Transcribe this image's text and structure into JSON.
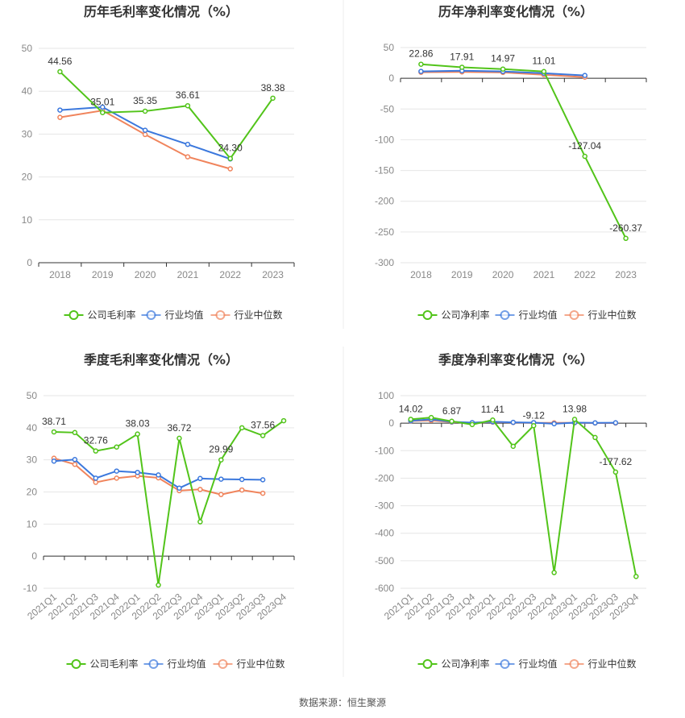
{
  "source_label": "数据来源：恒生聚源",
  "colors": {
    "company": "#52c41a",
    "industry_avg": "#3b78dd",
    "industry_median": "#f0845c",
    "grid": "#e6e6e6",
    "axis": "#333333",
    "divider": "#eeeeee"
  },
  "chart_data": [
    {
      "id": "annual-gross",
      "type": "line",
      "title": "历年毛利率变化情况（%）",
      "categories": [
        "2018",
        "2019",
        "2020",
        "2021",
        "2022",
        "2023"
      ],
      "ylim": [
        0,
        50
      ],
      "yticks": [
        0,
        10,
        20,
        30,
        40,
        50
      ],
      "series": [
        {
          "name": "公司毛利率",
          "key": "company",
          "values": [
            44.56,
            35.01,
            35.35,
            36.61,
            24.3,
            38.38
          ],
          "labels": true
        },
        {
          "name": "行业均值",
          "key": "industry_avg",
          "values": [
            35.6,
            36.3,
            30.9,
            27.6,
            24.2,
            null
          ]
        },
        {
          "name": "行业中位数",
          "key": "industry_median",
          "values": [
            33.9,
            35.5,
            29.9,
            24.7,
            21.9,
            null
          ]
        }
      ],
      "data_labels": [
        "44.56",
        "35.01",
        "35.35",
        "36.61",
        "24.30",
        "38.38"
      ],
      "legend": [
        "公司毛利率",
        "行业均值",
        "行业中位数"
      ]
    },
    {
      "id": "annual-net",
      "type": "line",
      "title": "历年净利率变化情况（%）",
      "categories": [
        "2018",
        "2019",
        "2020",
        "2021",
        "2022",
        "2023"
      ],
      "ylim": [
        -300,
        50
      ],
      "yticks": [
        -300,
        -250,
        -200,
        -150,
        -100,
        -50,
        0,
        50
      ],
      "series": [
        {
          "name": "公司净利率",
          "key": "company",
          "values": [
            22.86,
            17.91,
            14.97,
            11.01,
            -127.04,
            -260.37
          ],
          "labels": true
        },
        {
          "name": "行业均值",
          "key": "industry_avg",
          "values": [
            11.2,
            12.3,
            11.1,
            8.2,
            4.6,
            null
          ]
        },
        {
          "name": "行业中位数",
          "key": "industry_median",
          "values": [
            9.8,
            10.4,
            9.6,
            5.8,
            1.9,
            null
          ]
        }
      ],
      "data_labels": [
        "22.86",
        "17.91",
        "14.97",
        "11.01",
        "-127.04",
        "-260.37"
      ],
      "legend": [
        "公司净利率",
        "行业均值",
        "行业中位数"
      ]
    },
    {
      "id": "quarterly-gross",
      "type": "line",
      "title": "季度毛利率变化情况（%）",
      "categories": [
        "2021Q1",
        "2021Q2",
        "2021Q3",
        "2021Q4",
        "2022Q1",
        "2022Q2",
        "2022Q3",
        "2022Q4",
        "2023Q1",
        "2023Q2",
        "2023Q3",
        "2023Q4"
      ],
      "ylim": [
        -10,
        50
      ],
      "yticks": [
        -10,
        0,
        10,
        20,
        30,
        40,
        50
      ],
      "series": [
        {
          "name": "公司毛利率",
          "key": "company",
          "values": [
            38.71,
            38.5,
            32.76,
            34.0,
            38.03,
            -9.0,
            36.72,
            10.7,
            29.99,
            40.0,
            37.56,
            42.2
          ],
          "label_idx": [
            0,
            2,
            4,
            6,
            8,
            10
          ]
        },
        {
          "name": "行业均值",
          "key": "industry_avg",
          "values": [
            29.6,
            30.1,
            24.3,
            26.5,
            26.1,
            25.3,
            21.2,
            24.2,
            24.0,
            23.9,
            23.8,
            null
          ]
        },
        {
          "name": "行业中位数",
          "key": "industry_median",
          "values": [
            30.5,
            28.6,
            23.0,
            24.3,
            25.0,
            24.4,
            20.4,
            20.8,
            19.2,
            20.6,
            19.6,
            null
          ]
        }
      ],
      "data_labels": [
        "38.71",
        "32.76",
        "38.03",
        "36.72",
        "29.99",
        "37.56"
      ],
      "legend": [
        "公司毛利率",
        "行业均值",
        "行业中位数"
      ]
    },
    {
      "id": "quarterly-net",
      "type": "line",
      "title": "季度净利率变化情况（%）",
      "categories": [
        "2021Q1",
        "2021Q2",
        "2021Q3",
        "2021Q4",
        "2022Q1",
        "2022Q2",
        "2022Q3",
        "2022Q4",
        "2023Q1",
        "2023Q2",
        "2023Q3",
        "2023Q4"
      ],
      "ylim": [
        -600,
        100
      ],
      "yticks": [
        -600,
        -500,
        -400,
        -300,
        -200,
        -100,
        0,
        100
      ],
      "series": [
        {
          "name": "公司净利率",
          "key": "company",
          "values": [
            14.02,
            20.5,
            6.87,
            -5.0,
            11.41,
            -84.0,
            -9.12,
            -543.0,
            13.98,
            -52.0,
            -177.62,
            -557.0
          ],
          "label_idx": [
            0,
            2,
            4,
            6,
            8,
            10
          ]
        },
        {
          "name": "行业均值",
          "key": "industry_avg",
          "values": [
            9.0,
            14.0,
            5.0,
            2.0,
            5.0,
            3.0,
            2.0,
            -2.0,
            2.0,
            1.0,
            1.5,
            null
          ]
        },
        {
          "name": "行业中位数",
          "key": "industry_median",
          "values": [
            8.0,
            10.0,
            4.0,
            1.5,
            4.0,
            2.5,
            1.0,
            1.0,
            1.5,
            0.5,
            0.5,
            null
          ]
        }
      ],
      "data_labels": [
        "14.02",
        "6.87",
        "11.41",
        "-9.12",
        "13.98",
        "-177.62"
      ],
      "legend": [
        "公司净利率",
        "行业均值",
        "行业中位数"
      ]
    }
  ]
}
